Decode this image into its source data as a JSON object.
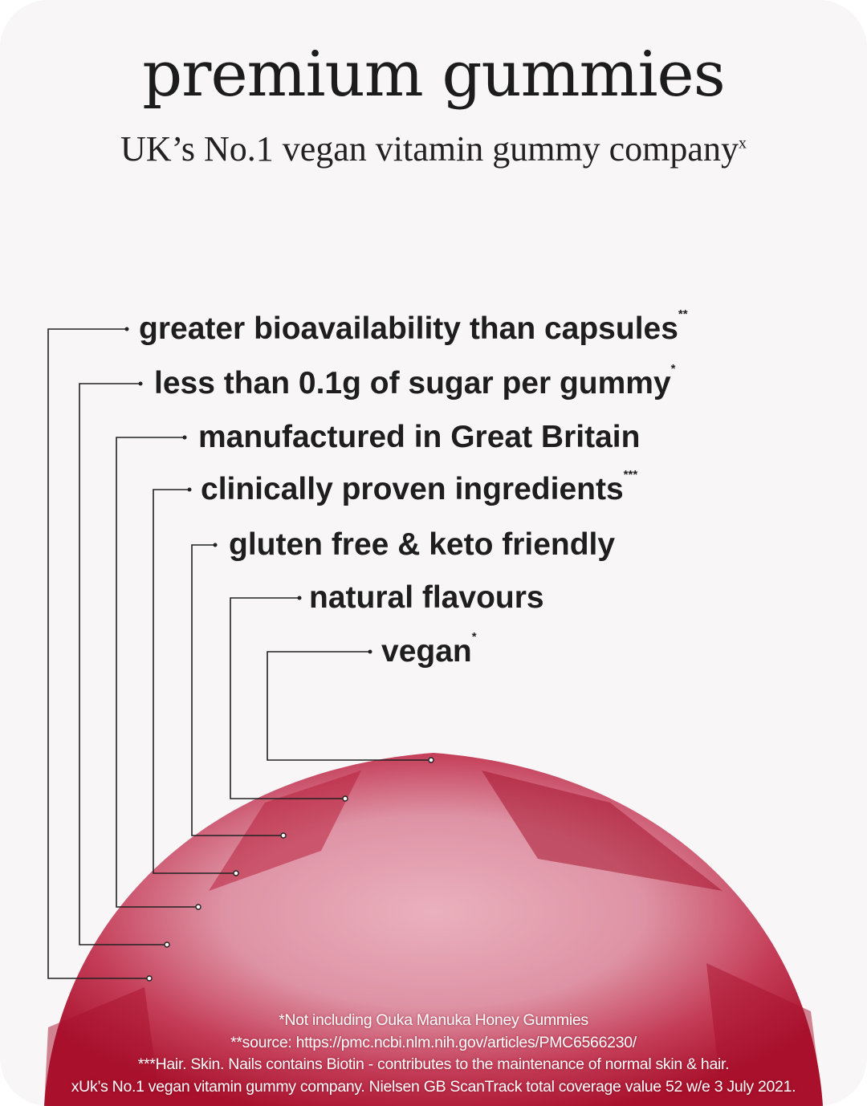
{
  "title": "premium gummies",
  "subtitle": "UK’s No.1 vegan vitamin gummy company",
  "subtitle_mark": "x",
  "features": [
    {
      "text": "greater bioavailability than capsules",
      "mark": "**"
    },
    {
      "text": "less than 0.1g of sugar per gummy",
      "mark": "*"
    },
    {
      "text": "manufactured in Great Britain",
      "mark": ""
    },
    {
      "text": "clinically proven ingredients",
      "mark": "***"
    },
    {
      "text": "gluten free & keto friendly",
      "mark": ""
    },
    {
      "text": "natural flavours",
      "mark": ""
    },
    {
      "text": "vegan",
      "mark": "*"
    }
  ],
  "footnotes": [
    "*Not including Ouka Manuka Honey Gummies",
    "**source: https://pmc.ncbi.nlm.nih.gov/articles/PMC6566230/",
    "***Hair. Skin. Nails contains Biotin - contributes to the maintenance of normal skin & hair.",
    "xUk’s No.1 vegan vitamin gummy company. Nielsen GB ScanTrack total coverage value 52 w/e 3 July 2021."
  ],
  "colors": {
    "background": "#f8f6f7",
    "gummy_dark": "#b0142e",
    "gummy_light": "#e8a3b2",
    "text": "#1e1e1e"
  }
}
